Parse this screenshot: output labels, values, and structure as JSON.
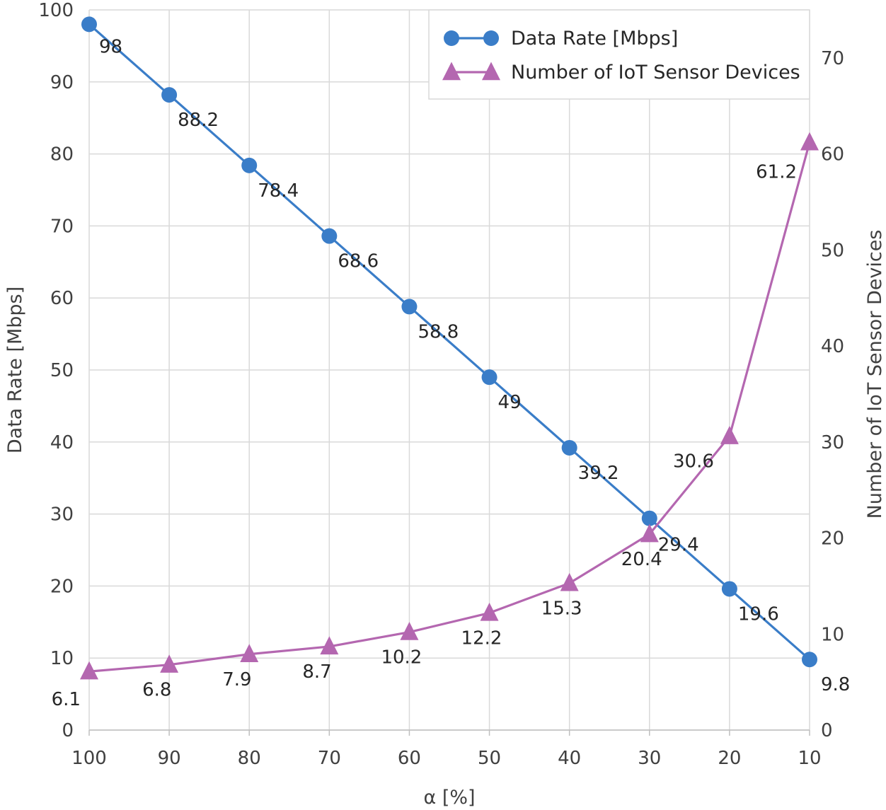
{
  "chart_data": {
    "type": "line",
    "title": "",
    "xlabel": "α [%]",
    "ylabel": "Data Rate [Mbps]",
    "y2label": "Number of IoT Sensor Devices",
    "x": [
      100,
      90,
      80,
      70,
      60,
      50,
      40,
      30,
      20,
      10
    ],
    "x_tick_labels": [
      "100",
      "90",
      "80",
      "70",
      "60",
      "50",
      "40",
      "30",
      "20",
      "10"
    ],
    "ylim": [
      0,
      100
    ],
    "y_tick_labels": [
      "0",
      "10",
      "20",
      "30",
      "40",
      "50",
      "60",
      "70",
      "80",
      "90",
      "100"
    ],
    "y2lim": [
      0,
      75
    ],
    "y2_tick_labels": [
      "0",
      "10",
      "20",
      "30",
      "40",
      "50",
      "60",
      "70"
    ],
    "grid": true,
    "legend_position": "top-right",
    "series": [
      {
        "name": "Data Rate [Mbps]",
        "axis": "left",
        "marker": "circle",
        "color": "#3a7dc8",
        "values": [
          98,
          88.2,
          78.4,
          68.6,
          58.8,
          49,
          39.2,
          29.4,
          19.6,
          9.8
        ],
        "labels": [
          "98",
          "88.2",
          "78.4",
          "68.6",
          "58.8",
          "49",
          "39.2",
          "29.4",
          "19.6",
          "9.8"
        ]
      },
      {
        "name": "Number of IoT Sensor Devices",
        "axis": "right",
        "marker": "triangle",
        "color": "#b467b0",
        "values": [
          6.1,
          6.8,
          7.9,
          8.7,
          10.2,
          12.2,
          15.3,
          20.4,
          30.6,
          61.2
        ],
        "labels": [
          "6.1",
          "6.8",
          "7.9",
          "8.7",
          "10.2",
          "12.2",
          "15.3",
          "20.4",
          "30.6",
          "61.2"
        ]
      }
    ]
  }
}
